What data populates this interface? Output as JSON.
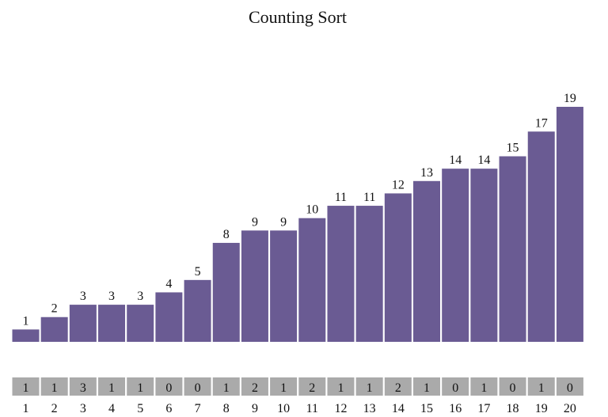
{
  "chart_data": {
    "type": "bar",
    "title": "Counting Sort",
    "categories": [
      1,
      2,
      3,
      4,
      5,
      6,
      7,
      8,
      9,
      10,
      11,
      12,
      13,
      14,
      15,
      16,
      17,
      18,
      19,
      20
    ],
    "values": [
      1,
      2,
      3,
      3,
      3,
      4,
      5,
      8,
      9,
      9,
      10,
      11,
      11,
      12,
      13,
      14,
      14,
      15,
      17,
      19
    ],
    "counts": [
      1,
      1,
      3,
      1,
      1,
      0,
      0,
      1,
      2,
      1,
      2,
      1,
      1,
      2,
      1,
      0,
      1,
      0,
      1,
      0
    ],
    "ylim": [
      0,
      19
    ],
    "grid": false,
    "bar_color": "#6a5b93",
    "count_box_color": "#aaaaaa"
  }
}
